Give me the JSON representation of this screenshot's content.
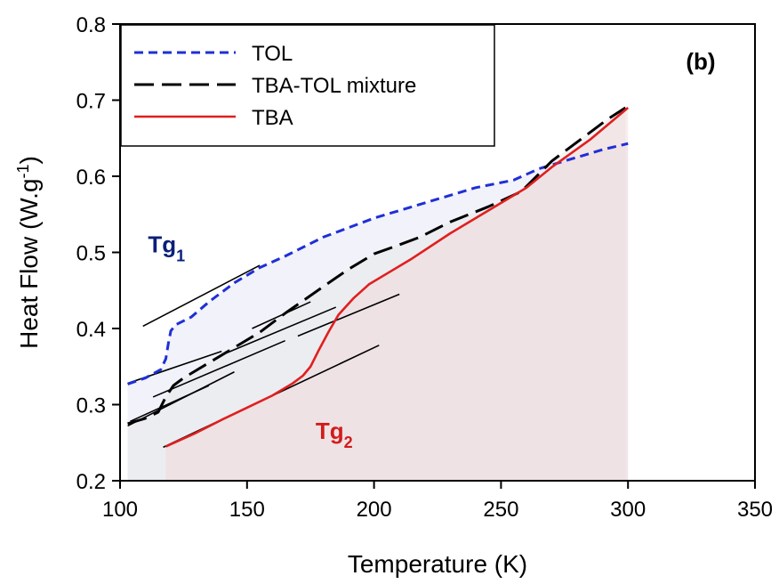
{
  "chart_data": {
    "type": "line",
    "xlabel": "Temperature (K)",
    "ylabel": "Heat Flow (W.g-1)",
    "ylabel_parts": {
      "main": "Heat Flow (W.g",
      "sup": "-1",
      "tail": ")"
    },
    "xlim": [
      100,
      350
    ],
    "ylim": [
      0.2,
      0.8
    ],
    "xticks": [
      100,
      150,
      200,
      250,
      300,
      350
    ],
    "yticks": [
      0.2,
      0.3,
      0.4,
      0.5,
      0.6,
      0.7,
      0.8
    ],
    "xtick_labels": [
      "100",
      "150",
      "200",
      "250",
      "300",
      "350"
    ],
    "ytick_labels": [
      "0.2",
      "0.3",
      "0.4",
      "0.5",
      "0.6",
      "0.7",
      "0.8"
    ],
    "panel_label": "(b)",
    "legend_position": "top-left",
    "grid": false,
    "series": [
      {
        "name": "TOL",
        "color": "#1f2fd6",
        "dash": "short-dash",
        "fill": "#dfe3f5",
        "points": [
          [
            103,
            0.327
          ],
          [
            110,
            0.335
          ],
          [
            116,
            0.346
          ],
          [
            118,
            0.36
          ],
          [
            119,
            0.38
          ],
          [
            120,
            0.397
          ],
          [
            122,
            0.405
          ],
          [
            128,
            0.415
          ],
          [
            135,
            0.435
          ],
          [
            145,
            0.46
          ],
          [
            155,
            0.48
          ],
          [
            165,
            0.495
          ],
          [
            180,
            0.52
          ],
          [
            200,
            0.545
          ],
          [
            220,
            0.565
          ],
          [
            240,
            0.585
          ],
          [
            255,
            0.595
          ],
          [
            265,
            0.61
          ],
          [
            275,
            0.62
          ],
          [
            290,
            0.635
          ],
          [
            300,
            0.643
          ]
        ]
      },
      {
        "name": "TBA-TOL mixture",
        "color": "#000000",
        "dash": "long-dash",
        "fill": "#e6e6e6",
        "points": [
          [
            103,
            0.275
          ],
          [
            110,
            0.282
          ],
          [
            115,
            0.29
          ],
          [
            118,
            0.31
          ],
          [
            121,
            0.325
          ],
          [
            125,
            0.335
          ],
          [
            135,
            0.355
          ],
          [
            145,
            0.375
          ],
          [
            155,
            0.395
          ],
          [
            165,
            0.42
          ],
          [
            180,
            0.455
          ],
          [
            190,
            0.478
          ],
          [
            200,
            0.498
          ],
          [
            210,
            0.51
          ],
          [
            218,
            0.52
          ],
          [
            230,
            0.54
          ],
          [
            245,
            0.56
          ],
          [
            258,
            0.58
          ],
          [
            270,
            0.62
          ],
          [
            282,
            0.65
          ],
          [
            292,
            0.675
          ],
          [
            299,
            0.69
          ]
        ]
      },
      {
        "name": "TBA",
        "color": "#e01f1f",
        "dash": "solid",
        "fill": "#f2d4d4",
        "points": [
          [
            118,
            0.245
          ],
          [
            130,
            0.263
          ],
          [
            140,
            0.28
          ],
          [
            150,
            0.296
          ],
          [
            160,
            0.312
          ],
          [
            168,
            0.328
          ],
          [
            172,
            0.338
          ],
          [
            175,
            0.35
          ],
          [
            178,
            0.37
          ],
          [
            182,
            0.395
          ],
          [
            186,
            0.418
          ],
          [
            192,
            0.44
          ],
          [
            198,
            0.458
          ],
          [
            205,
            0.472
          ],
          [
            215,
            0.492
          ],
          [
            230,
            0.525
          ],
          [
            245,
            0.555
          ],
          [
            260,
            0.585
          ],
          [
            270,
            0.612
          ],
          [
            285,
            0.648
          ],
          [
            300,
            0.69
          ]
        ]
      }
    ],
    "tangent_lines": [
      [
        [
          109,
          0.403
        ],
        [
          155,
          0.483
        ]
      ],
      [
        [
          103,
          0.328
        ],
        [
          140,
          0.37
        ]
      ],
      [
        [
          104,
          0.278
        ],
        [
          135,
          0.325
        ]
      ],
      [
        [
          103,
          0.272
        ],
        [
          145,
          0.343
        ]
      ],
      [
        [
          113,
          0.31
        ],
        [
          165,
          0.384
        ]
      ],
      [
        [
          117,
          0.244
        ],
        [
          202,
          0.378
        ]
      ],
      [
        [
          152,
          0.4
        ],
        [
          175,
          0.435
        ]
      ],
      [
        [
          142,
          0.368
        ],
        [
          185,
          0.428
        ]
      ],
      [
        [
          170,
          0.39
        ],
        [
          210,
          0.445
        ]
      ]
    ],
    "annotations": [
      {
        "text": "Tg",
        "sub": "1",
        "color": "#0a1f7a",
        "x": 111,
        "y": 0.5
      },
      {
        "text": "Tg",
        "sub": "2",
        "color": "#d21c1c",
        "x": 177,
        "y": 0.255
      }
    ]
  }
}
